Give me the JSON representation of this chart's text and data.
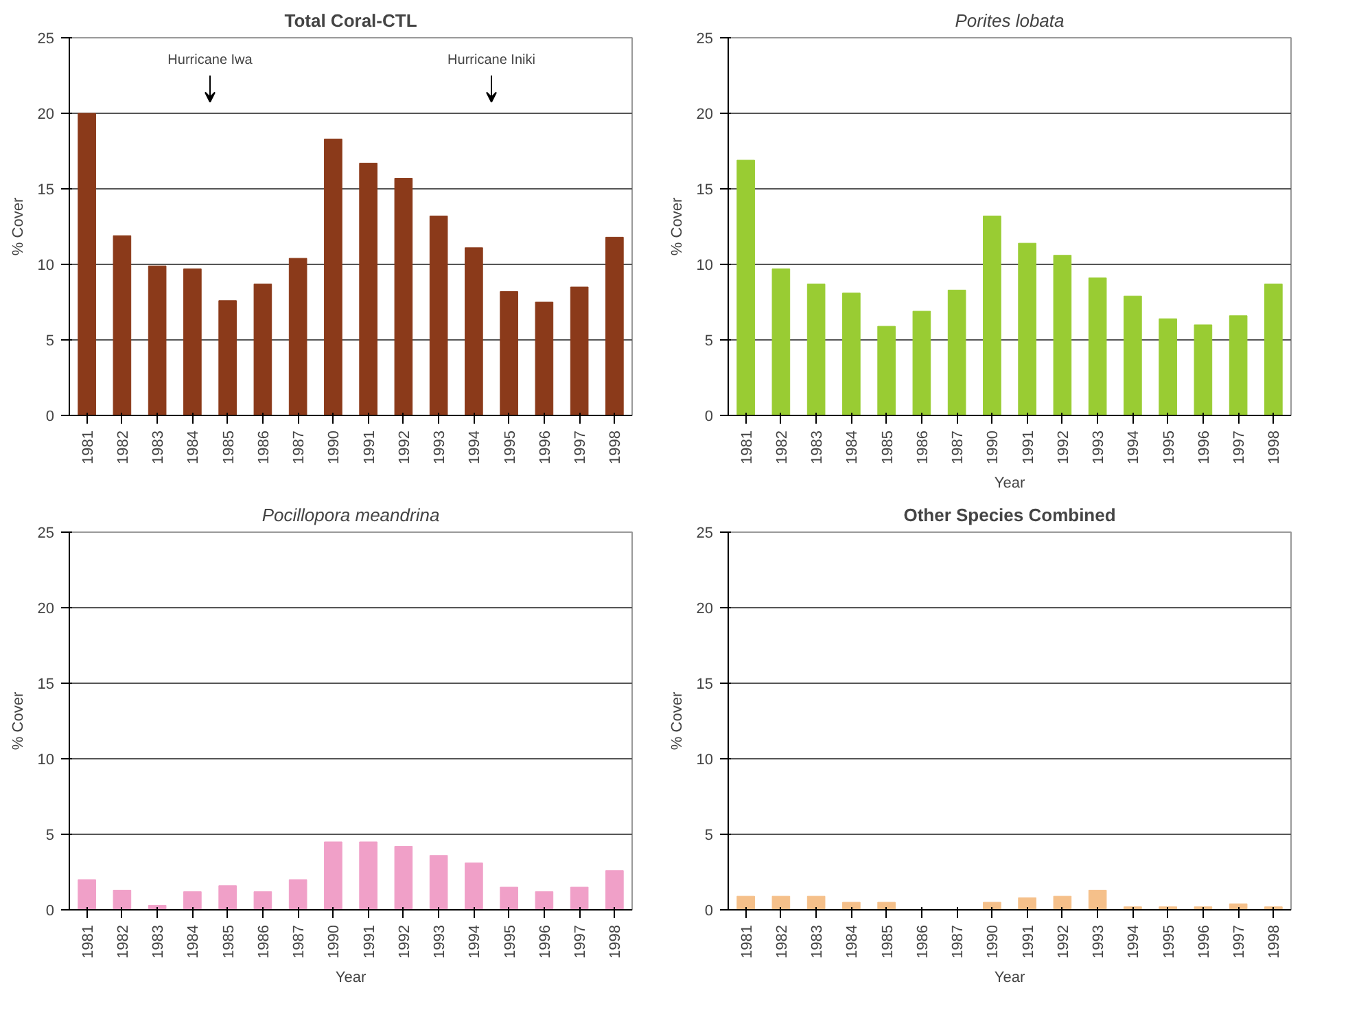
{
  "chart_data": [
    {
      "type": "bar",
      "title": "Total Coral-CTL",
      "ylabel": "% Cover",
      "categories": [
        "1981",
        "1982",
        "1983",
        "1984",
        "1985",
        "1986",
        "1987",
        "1990",
        "1991",
        "1992",
        "1993",
        "1994",
        "1995",
        "1996",
        "1997",
        "1998"
      ],
      "values": [
        20,
        11.9,
        9.9,
        9.7,
        7.6,
        8.7,
        10.4,
        18.3,
        16.7,
        15.7,
        13.2,
        11.1,
        8.2,
        7.5,
        8.5,
        11.8
      ],
      "color": "#8b3a1a",
      "ylim": [
        0,
        25
      ],
      "yticks": [
        0,
        5,
        10,
        15,
        20,
        25
      ],
      "grid": "y",
      "annotations": [
        "Hurricane Iwa",
        "Hurricane Iniki"
      ]
    },
    {
      "type": "bar",
      "title": "Porites lobata",
      "xlabel": "Year",
      "ylabel": "% Cover",
      "categories": [
        "1981",
        "1982",
        "1983",
        "1984",
        "1985",
        "1986",
        "1987",
        "1990",
        "1991",
        "1992",
        "1993",
        "1994",
        "1995",
        "1996",
        "1997",
        "1998"
      ],
      "values": [
        16.9,
        9.7,
        8.7,
        8.1,
        5.9,
        6.9,
        8.3,
        13.2,
        11.4,
        10.6,
        9.1,
        7.9,
        6.4,
        6.0,
        6.6,
        8.7
      ],
      "color": "#99cc33",
      "ylim": [
        0,
        25
      ],
      "yticks": [
        0,
        5,
        10,
        15,
        20,
        25
      ],
      "grid": "y"
    },
    {
      "type": "bar",
      "title": "Pocillopora meandrina",
      "xlabel": "Year",
      "ylabel": "% Cover",
      "categories": [
        "1981",
        "1982",
        "1983",
        "1984",
        "1985",
        "1986",
        "1987",
        "1990",
        "1991",
        "1992",
        "1993",
        "1994",
        "1995",
        "1996",
        "1997",
        "1998"
      ],
      "values": [
        2.0,
        1.3,
        0.3,
        1.2,
        1.6,
        1.2,
        2.0,
        4.5,
        4.5,
        4.2,
        3.6,
        3.1,
        1.5,
        1.2,
        1.5,
        2.6
      ],
      "color": "#f0a0c8",
      "ylim": [
        0,
        25
      ],
      "yticks": [
        0,
        5,
        10,
        15,
        20,
        25
      ],
      "grid": "y"
    },
    {
      "type": "bar",
      "title": "Other Species Combined",
      "xlabel": "Year",
      "ylabel": "% Cover",
      "categories": [
        "1981",
        "1982",
        "1983",
        "1984",
        "1985",
        "1986",
        "1987",
        "1990",
        "1991",
        "1992",
        "1993",
        "1994",
        "1995",
        "1996",
        "1997",
        "1998"
      ],
      "values": [
        0.9,
        0.9,
        0.9,
        0.5,
        0.5,
        0,
        0,
        0.5,
        0.8,
        0.9,
        1.3,
        0.2,
        0.2,
        0.2,
        0.4,
        0.2
      ],
      "color": "#f5c08a",
      "ylim": [
        0,
        25
      ],
      "yticks": [
        0,
        5,
        10,
        15,
        20,
        25
      ],
      "grid": "y"
    }
  ]
}
